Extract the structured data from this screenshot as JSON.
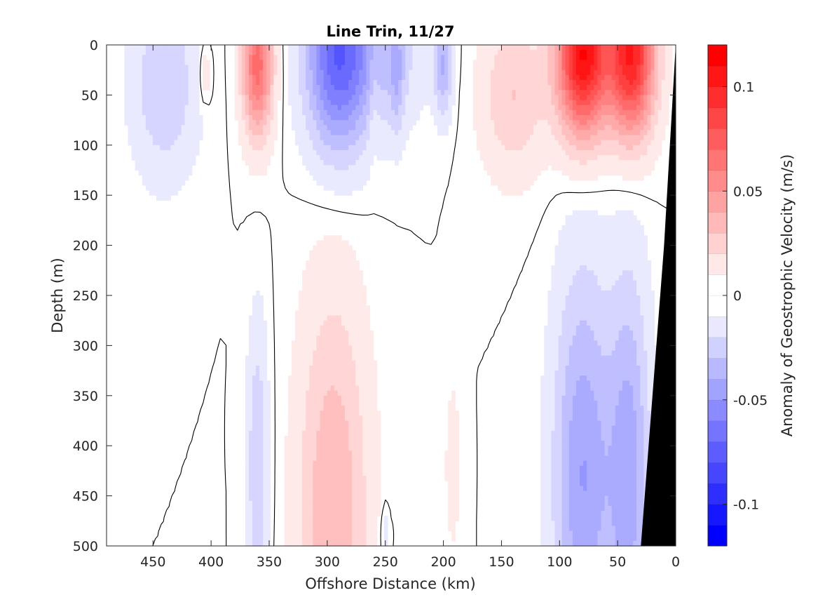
{
  "chart_data": {
    "type": "heatmap",
    "title": "Line Trin, 11/27",
    "xlabel": "Offshore Distance (km)",
    "ylabel": "Depth (m)",
    "colorbar_label": "Anomaly of Geostrophic Velocity (m/s)",
    "xlim": [
      490,
      0
    ],
    "ylim": [
      0,
      500
    ],
    "clim": [
      -0.12,
      0.12
    ],
    "x_ticks": [
      450,
      400,
      350,
      300,
      250,
      200,
      150,
      100,
      50,
      0
    ],
    "y_ticks": [
      0,
      50,
      100,
      150,
      200,
      250,
      300,
      350,
      400,
      450,
      500
    ],
    "colorbar_ticks": [
      0.1,
      0.05,
      0,
      -0.05,
      -0.1
    ],
    "colorbar_tick_labels": [
      "0.1",
      "0.05",
      "0",
      "-0.05",
      "-0.1"
    ],
    "contour_levels": 24,
    "contour_interval": 0.01,
    "zero_contour_drawn": true,
    "colormap": "blue-white-red",
    "colors": {
      "negative": "#0000ff",
      "positive": "#ff0000",
      "zero": "#ffffff",
      "bathymetry": "#000000",
      "contour": "#000000"
    },
    "bathymetry_mask_km": [
      [
        0,
        0
      ],
      [
        0,
        500
      ],
      [
        30,
        500
      ],
      [
        10,
        200
      ],
      [
        0,
        0
      ]
    ],
    "features": [
      {
        "type": "eddy",
        "x_km": 360,
        "depth_m": 20,
        "dx_km": 13,
        "dz_m": 70,
        "amp": 0.07
      },
      {
        "type": "eddy",
        "x_km": 290,
        "depth_m": 10,
        "dx_km": 28,
        "dz_m": 95,
        "amp": -0.075
      },
      {
        "type": "eddy",
        "x_km": 245,
        "depth_m": 10,
        "dx_km": 30,
        "dz_m": 70,
        "amp": -0.02
      },
      {
        "type": "eddy",
        "x_km": 200,
        "depth_m": 20,
        "dx_km": 8,
        "dz_m": 50,
        "amp": -0.035
      },
      {
        "type": "eddy",
        "x_km": 240,
        "depth_m": 30,
        "dx_km": 6,
        "dz_m": 60,
        "amp": -0.02
      },
      {
        "type": "eddy",
        "x_km": 260,
        "depth_m": 50,
        "dx_km": 5,
        "dz_m": 60,
        "amp": 0.01
      },
      {
        "type": "eddy",
        "x_km": 440,
        "depth_m": 40,
        "dx_km": 28,
        "dz_m": 90,
        "amp": -0.025
      },
      {
        "type": "eddy",
        "x_km": 405,
        "depth_m": 30,
        "dx_km": 5,
        "dz_m": 30,
        "amp": 0.015
      },
      {
        "type": "eddy",
        "x_km": 80,
        "depth_m": 10,
        "dx_km": 22,
        "dz_m": 80,
        "amp": 0.115
      },
      {
        "type": "eddy",
        "x_km": 38,
        "depth_m": 10,
        "dx_km": 20,
        "dz_m": 80,
        "amp": 0.105
      },
      {
        "type": "eddy",
        "x_km": 140,
        "depth_m": 50,
        "dx_km": 28,
        "dz_m": 80,
        "amp": 0.025
      },
      {
        "type": "eddy",
        "x_km": 295,
        "depth_m": 470,
        "dx_km": 30,
        "dz_m": 220,
        "amp": 0.035
      },
      {
        "type": "eddy",
        "x_km": 360,
        "depth_m": 420,
        "dx_km": 9,
        "dz_m": 140,
        "amp": -0.025
      },
      {
        "type": "eddy",
        "x_km": 80,
        "depth_m": 430,
        "dx_km": 25,
        "dz_m": 200,
        "amp": -0.045
      },
      {
        "type": "eddy",
        "x_km": 40,
        "depth_m": 430,
        "dx_km": 18,
        "dz_m": 200,
        "amp": -0.04
      },
      {
        "type": "eddy",
        "x_km": 192,
        "depth_m": 420,
        "dx_km": 6,
        "dz_m": 80,
        "amp": 0.012
      },
      {
        "type": "eddy",
        "x_km": 250,
        "depth_m": 490,
        "dx_km": 4,
        "dz_m": 30,
        "amp": -0.015
      }
    ]
  }
}
